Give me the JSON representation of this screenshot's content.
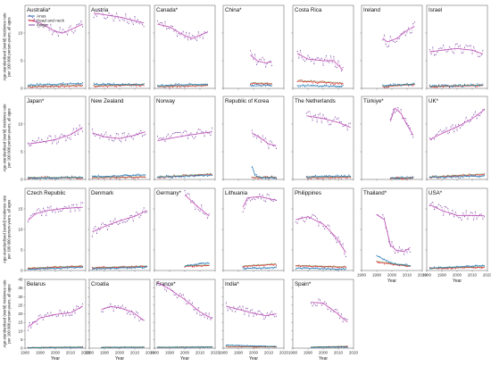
{
  "chart_data": {
    "type": "line",
    "ylabel": "Age-standardised (world) incidence rate per 100 000 person-years, all ages",
    "xlabel": "Year",
    "x_ticks": [
      1980,
      1990,
      2000,
      2010,
      2020
    ],
    "legend": [
      "Anus",
      "Head and neck",
      "Penis"
    ],
    "legend_position": "top-left of first panel",
    "colors": {
      "Anus": "#1f77b4",
      "Head and neck": "#d62728",
      "Penis": "#7b3fa0",
      "fit": "#ff66cc",
      "neck_alt": "#2ca02c"
    },
    "rows": [
      {
        "ylim": [
          0,
          15
        ],
        "yticks": [
          0,
          5,
          10
        ]
      },
      {
        "ylim": [
          0,
          15
        ],
        "yticks": [
          0,
          5,
          10
        ]
      },
      {
        "ylim": [
          0,
          20
        ],
        "yticks": [
          0,
          5,
          10,
          15
        ]
      },
      {
        "ylim": [
          0,
          40
        ],
        "yticks": [
          0,
          5,
          10,
          15,
          20,
          25,
          30,
          35,
          40
        ]
      }
    ],
    "panels": [
      {
        "title": "Australia*",
        "row": 0,
        "col": 0,
        "penis": [
          [
            1982,
            12.4
          ],
          [
            1990,
            11.8
          ],
          [
            2000,
            10.3
          ],
          [
            2005,
            10.0
          ],
          [
            2010,
            10.6
          ],
          [
            2018,
            11.6
          ]
        ],
        "anus": [
          [
            1982,
            0.6
          ],
          [
            2018,
            0.9
          ]
        ],
        "hn": [
          [
            1982,
            0.3
          ],
          [
            2018,
            0.5
          ]
        ]
      },
      {
        "title": "Austria",
        "row": 0,
        "col": 1,
        "penis": [
          [
            1983,
            13.6
          ],
          [
            1990,
            13.3
          ],
          [
            2000,
            12.9
          ],
          [
            2010,
            12.2
          ],
          [
            2016,
            11.8
          ]
        ],
        "anus": [
          [
            1983,
            0.7
          ],
          [
            2016,
            0.7
          ]
        ],
        "hn": [
          [
            1983,
            0.4
          ],
          [
            2016,
            0.6
          ]
        ]
      },
      {
        "title": "Canada*",
        "row": 0,
        "col": 2,
        "penis": [
          [
            1982,
            11.6
          ],
          [
            1990,
            11.1
          ],
          [
            2000,
            9.5
          ],
          [
            2005,
            9.0
          ],
          [
            2010,
            9.6
          ],
          [
            2015,
            10.2
          ]
        ],
        "anus": [
          [
            1982,
            0.5
          ],
          [
            2015,
            0.8
          ]
        ],
        "hn": [
          [
            1982,
            0.3
          ],
          [
            2015,
            0.5
          ]
        ]
      },
      {
        "title": "China*",
        "row": 0,
        "col": 3,
        "penis": [
          [
            1998,
            6.0
          ],
          [
            2003,
            4.9
          ],
          [
            2008,
            4.6
          ],
          [
            2012,
            4.8
          ]
        ],
        "anus": [
          [
            1998,
            0.4
          ],
          [
            2012,
            0.6
          ]
        ],
        "hn": [
          [
            1998,
            0.9
          ],
          [
            2012,
            0.8
          ]
        ]
      },
      {
        "title": "Costa Rica",
        "row": 0,
        "col": 4,
        "penis": [
          [
            1983,
            6.3
          ],
          [
            1990,
            5.3
          ],
          [
            2000,
            5.0
          ],
          [
            2007,
            5.0
          ],
          [
            2013,
            3.3
          ]
        ],
        "anus": [
          [
            1983,
            0.5
          ],
          [
            2013,
            0.4
          ]
        ],
        "hn": [
          [
            1983,
            1.3
          ],
          [
            2013,
            0.9
          ]
        ]
      },
      {
        "title": "Ireland",
        "row": 0,
        "col": 5,
        "penis": [
          [
            1994,
            9.0
          ],
          [
            1997,
            8.4
          ],
          [
            2003,
            9.0
          ],
          [
            2010,
            10.5
          ],
          [
            2015,
            11.2
          ]
        ],
        "anus": [
          [
            1994,
            0.5
          ],
          [
            2015,
            0.8
          ]
        ],
        "hn": [
          [
            1994,
            0.3
          ],
          [
            2015,
            0.7
          ]
        ]
      },
      {
        "title": "Israel",
        "row": 0,
        "col": 6,
        "penis": [
          [
            1982,
            6.6
          ],
          [
            1990,
            6.9
          ],
          [
            2000,
            7.2
          ],
          [
            2010,
            6.9
          ],
          [
            2017,
            6.2
          ]
        ],
        "anus": [
          [
            1982,
            0.4
          ],
          [
            2017,
            0.6
          ]
        ],
        "hn": [
          [
            1982,
            0.3
          ],
          [
            2017,
            0.5
          ]
        ]
      },
      {
        "title": "Japan*",
        "row": 1,
        "col": 0,
        "penis": [
          [
            1982,
            6.4
          ],
          [
            1990,
            6.7
          ],
          [
            2000,
            7.2
          ],
          [
            2010,
            8.1
          ],
          [
            2018,
            9.4
          ]
        ],
        "anus": [
          [
            1982,
            0.2
          ],
          [
            2018,
            0.4
          ]
        ],
        "hn": [
          [
            1982,
            0.3
          ],
          [
            2018,
            0.3
          ]
        ]
      },
      {
        "title": "New Zealand",
        "row": 1,
        "col": 1,
        "penis": [
          [
            1982,
            8.4
          ],
          [
            1990,
            7.7
          ],
          [
            2000,
            7.4
          ],
          [
            2010,
            8.0
          ],
          [
            2017,
            8.6
          ]
        ],
        "anus": [
          [
            1982,
            0.5
          ],
          [
            2017,
            0.8
          ]
        ],
        "hn": [
          [
            1982,
            0.3
          ],
          [
            2017,
            0.4
          ]
        ]
      },
      {
        "title": "Norway",
        "row": 1,
        "col": 2,
        "penis": [
          [
            1982,
            7.0
          ],
          [
            1990,
            7.4
          ],
          [
            2000,
            7.9
          ],
          [
            2010,
            8.3
          ],
          [
            2018,
            8.6
          ]
        ],
        "anus": [
          [
            1982,
            0.4
          ],
          [
            2018,
            0.8
          ]
        ],
        "hn": [
          [
            1982,
            0.4
          ],
          [
            2018,
            0.9
          ]
        ]
      },
      {
        "title": "Republic of Korea",
        "row": 1,
        "col": 3,
        "penis": [
          [
            1999,
            8.4
          ],
          [
            2005,
            7.4
          ],
          [
            2010,
            6.4
          ],
          [
            2015,
            6.1
          ]
        ],
        "anus": [
          [
            1999,
            2.4
          ],
          [
            2001,
            0.7
          ],
          [
            2006,
            0.3
          ],
          [
            2015,
            0.3
          ]
        ],
        "hn": [
          [
            1999,
            0.3
          ],
          [
            2015,
            0.4
          ]
        ]
      },
      {
        "title": "The Netherlands",
        "row": 1,
        "col": 4,
        "penis": [
          [
            1989,
            11.5
          ],
          [
            2000,
            11.0
          ],
          [
            2010,
            10.3
          ],
          [
            2018,
            9.4
          ]
        ],
        "anus": [
          [
            1989,
            0.5
          ],
          [
            2018,
            0.6
          ]
        ],
        "hn": [
          [
            1989,
            0.3
          ],
          [
            2018,
            0.4
          ]
        ]
      },
      {
        "title": "Türkiye*",
        "row": 1,
        "col": 5,
        "penis": [
          [
            1999,
            10.5
          ],
          [
            2002,
            12.9
          ],
          [
            2006,
            11.9
          ],
          [
            2010,
            9.8
          ],
          [
            2014,
            8.0
          ]
        ],
        "anus": [
          [
            1999,
            0.3
          ],
          [
            2014,
            0.3
          ]
        ],
        "hn": [
          [
            1999,
            0.2
          ],
          [
            2014,
            0.2
          ]
        ]
      },
      {
        "title": "UK*",
        "row": 1,
        "col": 6,
        "penis": [
          [
            1982,
            7.2
          ],
          [
            1990,
            8.3
          ],
          [
            2000,
            9.5
          ],
          [
            2010,
            11.0
          ],
          [
            2018,
            12.6
          ]
        ],
        "anus": [
          [
            1982,
            0.4
          ],
          [
            2018,
            0.6
          ]
        ],
        "hn": [
          [
            1982,
            0.4
          ],
          [
            2018,
            0.9
          ]
        ]
      },
      {
        "title": "Czech Republic",
        "row": 2,
        "col": 0,
        "penis": [
          [
            1982,
            12.2
          ],
          [
            1987,
            13.8
          ],
          [
            1995,
            14.6
          ],
          [
            2005,
            15.1
          ],
          [
            2018,
            15.4
          ]
        ],
        "anus": [
          [
            1982,
            0.3
          ],
          [
            2018,
            0.8
          ]
        ],
        "hn": [
          [
            1982,
            0.5
          ],
          [
            2018,
            1.0
          ]
        ]
      },
      {
        "title": "Denmark",
        "row": 2,
        "col": 1,
        "penis": [
          [
            1982,
            9.4
          ],
          [
            1990,
            10.7
          ],
          [
            2000,
            12.1
          ],
          [
            2010,
            13.2
          ],
          [
            2018,
            14.6
          ]
        ],
        "anus": [
          [
            1982,
            0.4
          ],
          [
            2018,
            0.8
          ]
        ],
        "hn": [
          [
            1982,
            0.6
          ],
          [
            2018,
            1.0
          ]
        ]
      },
      {
        "title": "Germany*",
        "row": 2,
        "col": 2,
        "penis": [
          [
            2000,
            18.4
          ],
          [
            2005,
            16.7
          ],
          [
            2010,
            15.1
          ],
          [
            2016,
            13.3
          ]
        ],
        "anus": [
          [
            2000,
            1.1
          ],
          [
            2016,
            1.9
          ]
        ],
        "hn": [
          [
            2000,
            1.0
          ],
          [
            2016,
            1.2
          ]
        ]
      },
      {
        "title": "Lithuania",
        "row": 2,
        "col": 3,
        "penis": [
          [
            1993,
            15.4
          ],
          [
            1996,
            17.7
          ],
          [
            2004,
            18.0
          ],
          [
            2010,
            17.5
          ],
          [
            2015,
            17.1
          ]
        ],
        "anus": [
          [
            1993,
            0.5
          ],
          [
            2015,
            0.7
          ]
        ],
        "hn": [
          [
            1993,
            1.0
          ],
          [
            2015,
            1.5
          ]
        ]
      },
      {
        "title": "Philippines",
        "row": 2,
        "col": 4,
        "penis": [
          [
            1982,
            12.4
          ],
          [
            1990,
            13.1
          ],
          [
            2000,
            11.3
          ],
          [
            2008,
            8.3
          ],
          [
            2015,
            4.3
          ]
        ],
        "anus": [
          [
            1982,
            0.6
          ],
          [
            2015,
            0.3
          ]
        ],
        "hn": [
          [
            1982,
            1.1
          ],
          [
            2015,
            0.8
          ]
        ]
      },
      {
        "title": "Thailand*",
        "row": 2,
        "col": 5,
        "penis": [
          [
            1990,
            13.6
          ],
          [
            1995,
            12.4
          ],
          [
            1999,
            6.2
          ],
          [
            2003,
            4.9
          ],
          [
            2008,
            4.6
          ],
          [
            2012,
            5.6
          ]
        ],
        "anus": [
          [
            1990,
            3.6
          ],
          [
            2000,
            1.7
          ],
          [
            2012,
            1.2
          ]
        ],
        "hn": [
          [
            1990,
            2.1
          ],
          [
            2000,
            1.5
          ],
          [
            2012,
            1.0
          ]
        ]
      },
      {
        "title": "USA*",
        "row": 2,
        "col": 6,
        "penis": [
          [
            1982,
            16.0
          ],
          [
            1990,
            14.6
          ],
          [
            2000,
            13.4
          ],
          [
            2010,
            13.4
          ],
          [
            2018,
            13.3
          ]
        ],
        "anus": [
          [
            1982,
            0.6
          ],
          [
            2018,
            1.2
          ]
        ],
        "hn": [
          [
            1982,
            0.5
          ],
          [
            2018,
            0.8
          ]
        ]
      },
      {
        "title": "Belarus",
        "row": 3,
        "col": 0,
        "penis": [
          [
            1982,
            12.3
          ],
          [
            1990,
            17.6
          ],
          [
            2000,
            19.6
          ],
          [
            2010,
            20.6
          ],
          [
            2018,
            24.3
          ]
        ],
        "anus": [
          [
            1982,
            0.3
          ],
          [
            2018,
            0.5
          ]
        ],
        "hn": [
          [
            1982,
            0.3
          ],
          [
            2018,
            0.6
          ]
        ]
      },
      {
        "title": "Croatia",
        "row": 3,
        "col": 1,
        "penis": [
          [
            1988,
            22.5
          ],
          [
            1994,
            24.2
          ],
          [
            2000,
            23.5
          ],
          [
            2008,
            21.2
          ],
          [
            2016,
            16.2
          ]
        ],
        "anus": [
          [
            1988,
            0.4
          ],
          [
            2016,
            0.5
          ]
        ],
        "hn": [
          [
            1988,
            0.4
          ],
          [
            2016,
            0.6
          ]
        ]
      },
      {
        "title": "France*",
        "row": 3,
        "col": 2,
        "penis": [
          [
            1982,
            38.2
          ],
          [
            1990,
            34.4
          ],
          [
            2000,
            28.3
          ],
          [
            2010,
            21.1
          ],
          [
            2018,
            17.2
          ]
        ],
        "anus": [
          [
            1982,
            0.5
          ],
          [
            2018,
            0.6
          ]
        ],
        "hn": [
          [
            1982,
            0.5
          ],
          [
            2018,
            0.7
          ]
        ]
      },
      {
        "title": "India*",
        "row": 3,
        "col": 3,
        "penis": [
          [
            1982,
            24.4
          ],
          [
            1990,
            22.6
          ],
          [
            2000,
            20.3
          ],
          [
            2008,
            18.9
          ],
          [
            2015,
            20.0
          ]
        ],
        "anus": [
          [
            1982,
            1.8
          ],
          [
            2015,
            0.9
          ]
        ],
        "hn": [
          [
            1982,
            0.9
          ],
          [
            2015,
            0.7
          ]
        ]
      },
      {
        "title": "Spain*",
        "row": 3,
        "col": 4,
        "penis": [
          [
            1992,
            26.7
          ],
          [
            2000,
            26.2
          ],
          [
            2007,
            21.8
          ],
          [
            2013,
            17.4
          ],
          [
            2016,
            15.2
          ]
        ],
        "anus": [
          [
            1992,
            0.5
          ],
          [
            2016,
            0.6
          ]
        ],
        "hn": [
          [
            1992,
            0.6
          ],
          [
            2016,
            1.0
          ]
        ]
      }
    ]
  }
}
